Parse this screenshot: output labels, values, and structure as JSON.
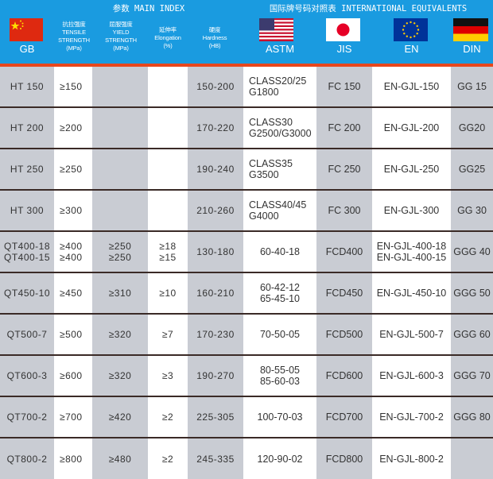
{
  "header": {
    "main_index_title": "参数 MAIN INDEX",
    "equivalents_title": "国际牌号码对照表 INTERNATIONAL EQUIVALENTS",
    "columns": {
      "gb": "GB",
      "tensile": "抗拉强度\nTENSILE\nSTRENGTH\n(MPa)",
      "yield": "屈服强度\nYIELD\nSTRENGTH\n(MPa)",
      "elongation": "延伸率\nElongation\n(%)",
      "hardness": "硬度\nHardness\n(HB)",
      "astm": "ASTM",
      "jis": "JIS",
      "en": "EN",
      "din": "DIN"
    },
    "flags": {
      "gb": "china-flag",
      "astm": "usa-flag",
      "jis": "japan-flag",
      "en": "eu-flag",
      "din": "germany-flag"
    }
  },
  "colors": {
    "header_bg": "#1a9be0",
    "accent_line": "#e8471c",
    "gray_column": "#c9ccd3",
    "row_divider": "#3a2a26"
  },
  "rows": [
    {
      "gb": "HT 150",
      "tensile": "≥150",
      "yield": "",
      "elongation": "",
      "hardness": "150-200",
      "astm": "CLASS20/25\nG1800",
      "jis": "FC 150",
      "en": "EN-GJL-150",
      "din": "GG 15"
    },
    {
      "gb": "HT 200",
      "tensile": "≥200",
      "yield": "",
      "elongation": "",
      "hardness": "170-220",
      "astm": "CLASS30\nG2500/G3000",
      "jis": "FC 200",
      "en": "EN-GJL-200",
      "din": "GG20"
    },
    {
      "gb": "HT 250",
      "tensile": "≥250",
      "yield": "",
      "elongation": "",
      "hardness": "190-240",
      "astm": "CLASS35\nG3500",
      "jis": "FC 250",
      "en": "EN-GJL-250",
      "din": "GG25"
    },
    {
      "gb": "HT 300",
      "tensile": "≥300",
      "yield": "",
      "elongation": "",
      "hardness": "210-260",
      "astm": "CLASS40/45\nG4000",
      "jis": "FC 300",
      "en": "EN-GJL-300",
      "din": "GG 30"
    },
    {
      "gb": "QT400-18\nQT400-15",
      "tensile": "≥400\n≥400",
      "yield": "≥250\n≥250",
      "elongation": "≥18\n≥15",
      "hardness": "130-180",
      "astm": "60-40-18",
      "jis": "FCD400",
      "en": "EN-GJL-400-18\nEN-GJL-400-15",
      "din": "GGG 40"
    },
    {
      "gb": "QT450-10",
      "tensile": "≥450",
      "yield": "≥310",
      "elongation": "≥10",
      "hardness": "160-210",
      "astm": "60-42-12\n65-45-10",
      "jis": "FCD450",
      "en": "EN-GJL-450-10",
      "din": "GGG 50"
    },
    {
      "gb": "QT500-7",
      "tensile": "≥500",
      "yield": "≥320",
      "elongation": "≥7",
      "hardness": "170-230",
      "astm": "70-50-05",
      "jis": "FCD500",
      "en": "EN-GJL-500-7",
      "din": "GGG 60"
    },
    {
      "gb": "QT600-3",
      "tensile": "≥600",
      "yield": "≥320",
      "elongation": "≥3",
      "hardness": "190-270",
      "astm": "80-55-05\n85-60-03",
      "jis": "FCD600",
      "en": "EN-GJL-600-3",
      "din": "GGG 70"
    },
    {
      "gb": "QT700-2",
      "tensile": "≥700",
      "yield": "≥420",
      "elongation": "≥2",
      "hardness": "225-305",
      "astm": "100-70-03",
      "jis": "FCD700",
      "en": "EN-GJL-700-2",
      "din": "GGG 80"
    },
    {
      "gb": "QT800-2",
      "tensile": "≥800",
      "yield": "≥480",
      "elongation": "≥2",
      "hardness": "245-335",
      "astm": "120-90-02",
      "jis": "FCD800",
      "en": "EN-GJL-800-2",
      "din": ""
    }
  ]
}
